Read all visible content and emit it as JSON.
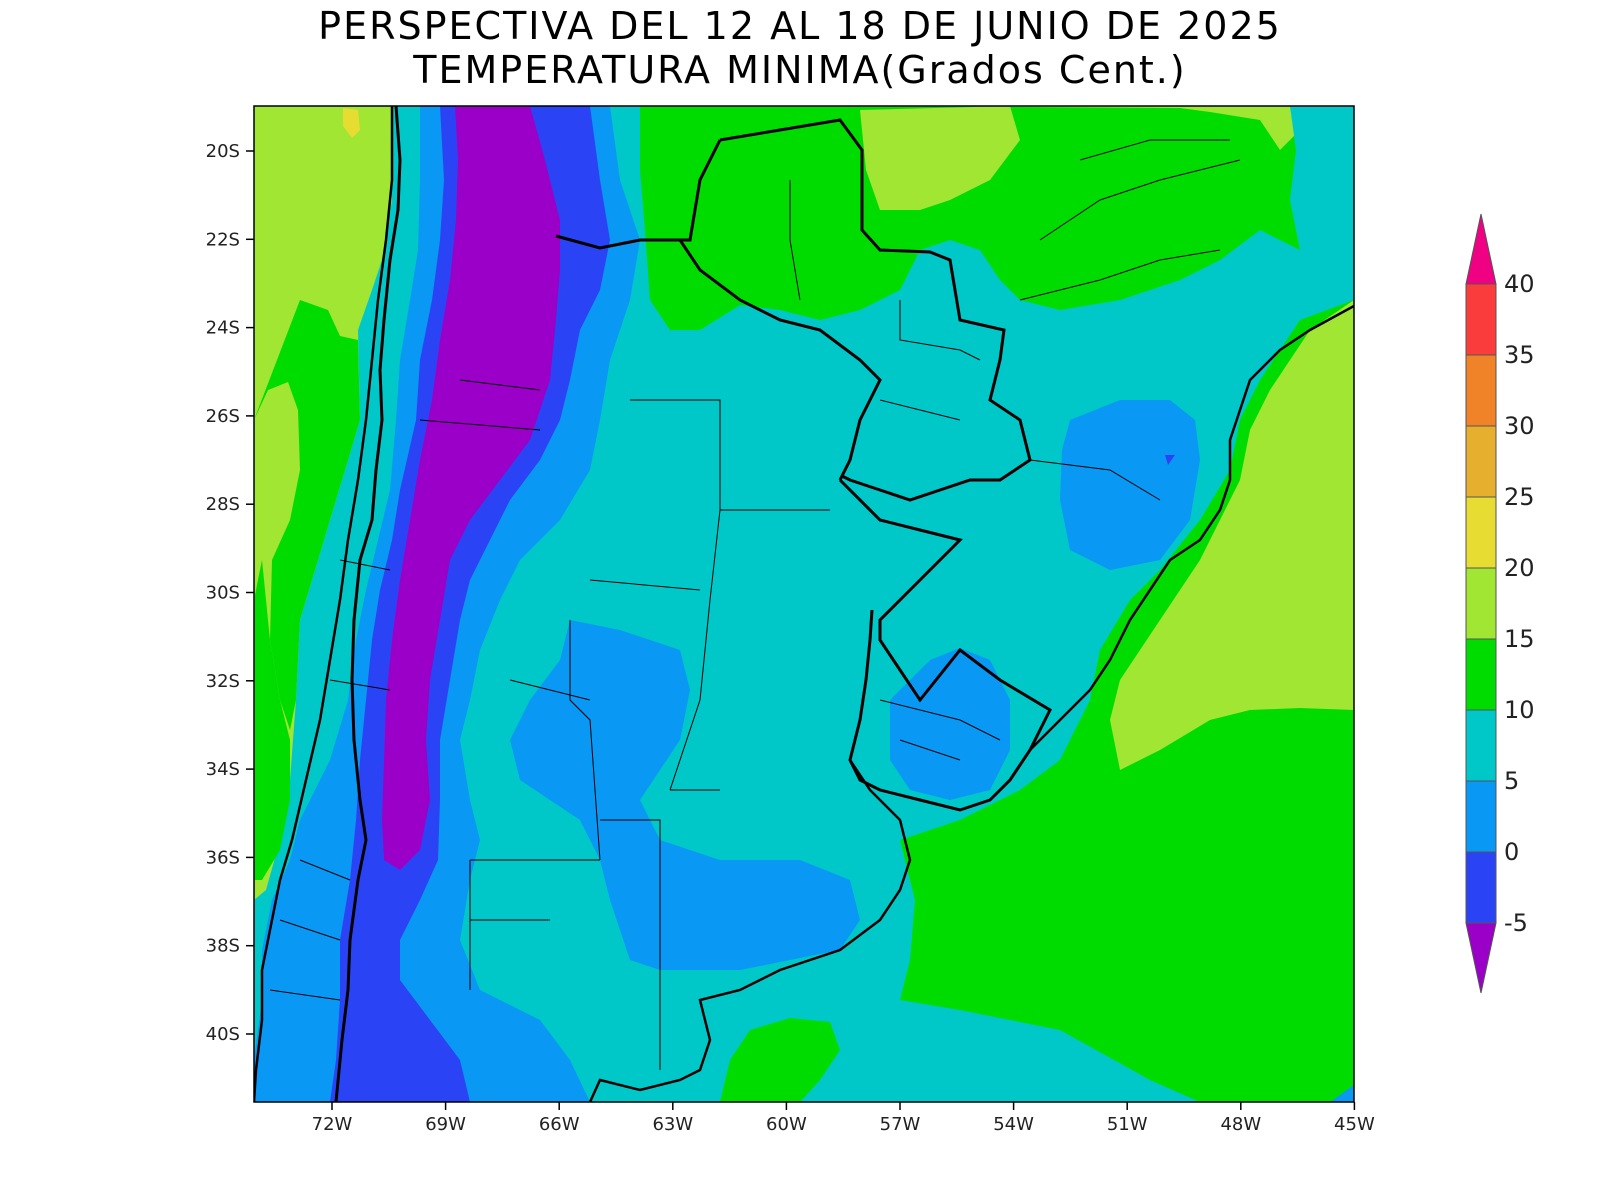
{
  "title": {
    "line1": "PERSPECTIVA DEL 12 AL 18 DE JUNIO DE 2025",
    "line2": "TEMPERATURA MINIMA(Grados Cent.)"
  },
  "axes": {
    "lon_labels": [
      "72W",
      "69W",
      "66W",
      "63W",
      "60W",
      "57W",
      "54W",
      "51W",
      "48W",
      "45W"
    ],
    "lat_labels": [
      "20S",
      "22S",
      "24S",
      "26S",
      "28S",
      "30S",
      "32S",
      "34S",
      "36S",
      "38S",
      "40S"
    ]
  },
  "legend": {
    "labels": [
      "40",
      "35",
      "30",
      "25",
      "20",
      "15",
      "10",
      "5",
      "0",
      "-5"
    ],
    "colors": {
      "lt_neg5": "#9a00c8",
      "neg5_0": "#2a44f5",
      "0_5": "#0a98f5",
      "5_10": "#00c8c8",
      "10_15": "#00dc00",
      "15_20": "#a0e632",
      "20_25": "#e6dc32",
      "25_30": "#e6af2d",
      "30_35": "#f08228",
      "35_40": "#fa3c3c",
      "gt_40": "#f00082"
    }
  }
}
